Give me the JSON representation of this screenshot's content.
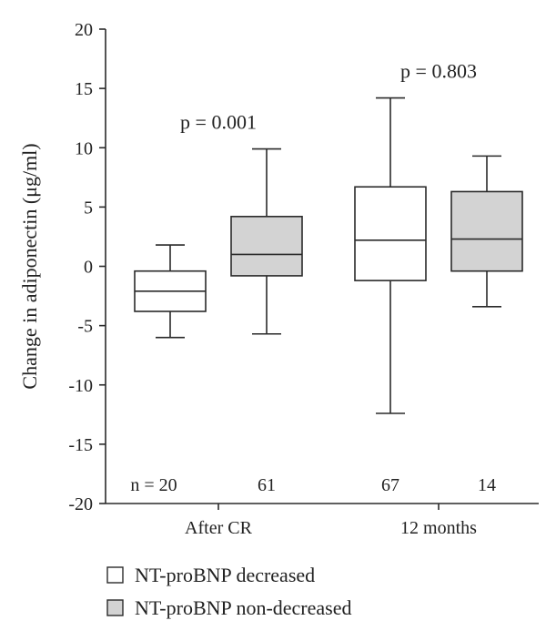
{
  "chart_data": {
    "type": "boxplot",
    "ylabel": "Change in adiponectin (μg/ml)",
    "ylim": [
      -20,
      20
    ],
    "yticks": [
      20,
      15,
      10,
      5,
      0,
      -5,
      -10,
      -15,
      -20
    ],
    "categories": [
      "After CR",
      "12 months"
    ],
    "series": [
      {
        "name": "NT-proBNP decreased",
        "color": "#ffffff"
      },
      {
        "name": "NT-proBNP non-decreased",
        "color": "#d3d3d3"
      }
    ],
    "boxes": [
      {
        "category": "After CR",
        "series": 0,
        "whisker_low": -6.0,
        "q1": -3.8,
        "median": -2.1,
        "q3": -0.4,
        "whisker_high": 1.8,
        "n_label": "n = 20"
      },
      {
        "category": "After CR",
        "series": 1,
        "whisker_low": -5.7,
        "q1": -0.8,
        "median": 1.0,
        "q3": 4.2,
        "whisker_high": 9.9,
        "n_label": "61"
      },
      {
        "category": "12 months",
        "series": 0,
        "whisker_low": -12.4,
        "q1": -1.2,
        "median": 2.2,
        "q3": 6.7,
        "whisker_high": 14.2,
        "n_label": "67"
      },
      {
        "category": "12 months",
        "series": 1,
        "whisker_low": -3.4,
        "q1": -0.4,
        "median": 2.3,
        "q3": 6.3,
        "whisker_high": 9.3,
        "n_label": "14"
      }
    ],
    "annotations": [
      {
        "category": "After CR",
        "text": "p = 0.001"
      },
      {
        "category": "12 months",
        "text": "p = 0.803"
      }
    ],
    "legend_position": "bottom-left"
  }
}
